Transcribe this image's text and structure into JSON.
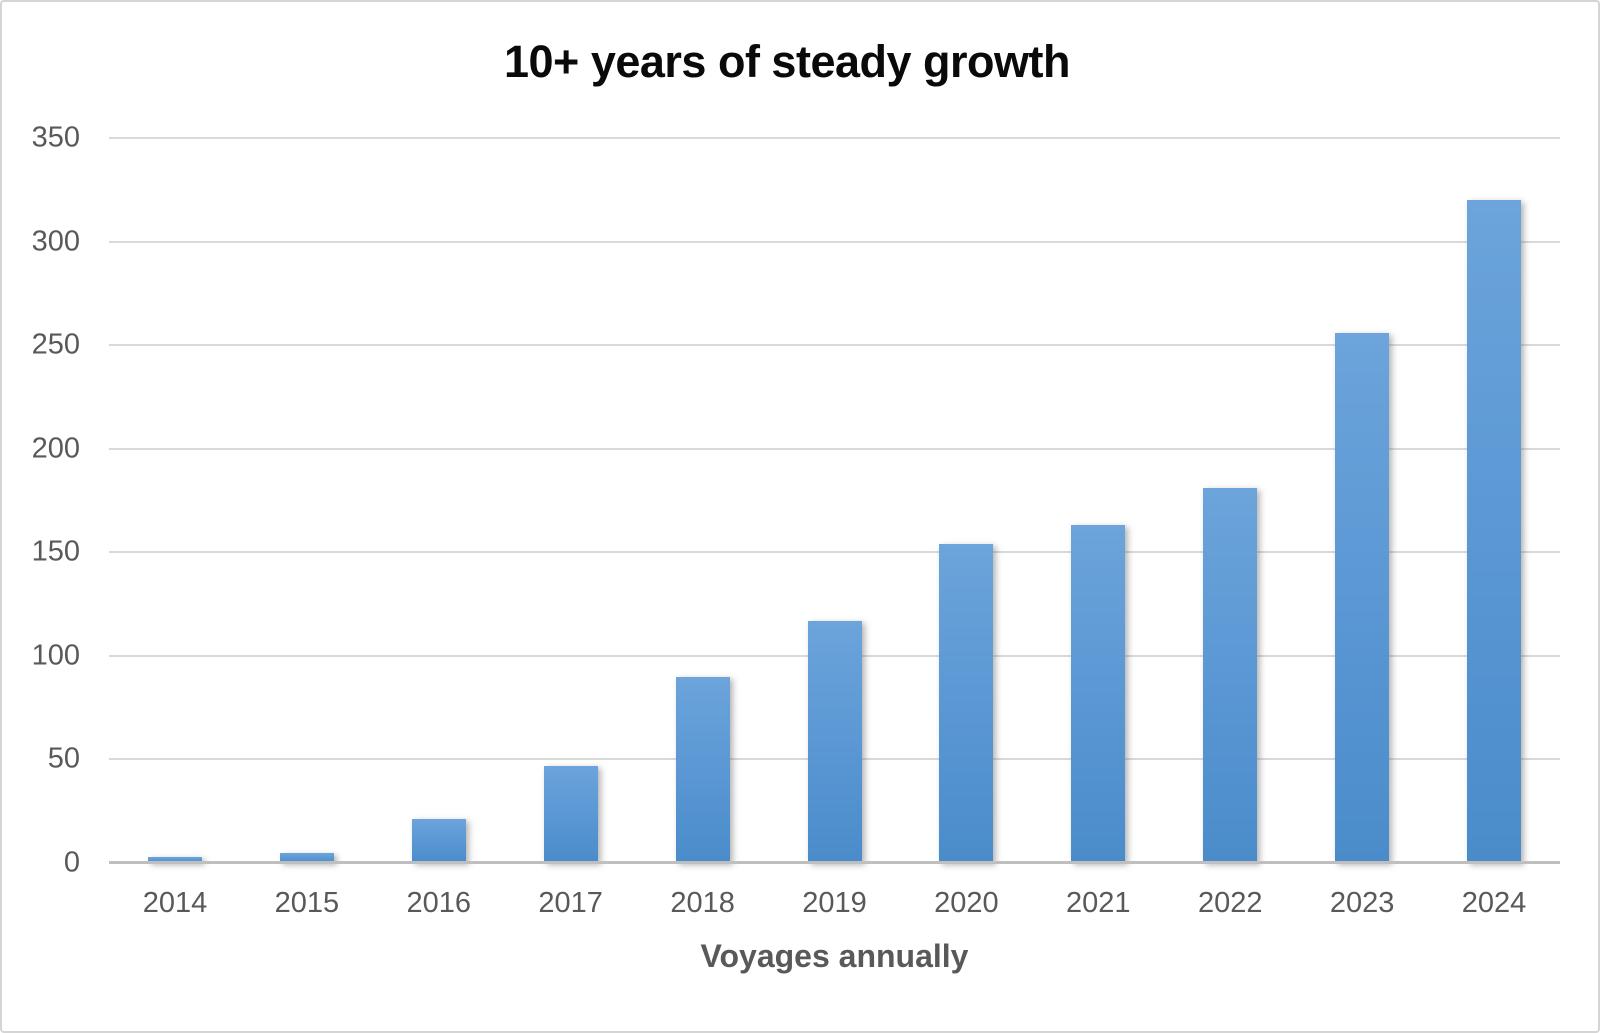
{
  "chart_data": {
    "type": "bar",
    "title": "10+ years of steady growth",
    "xlabel": "Voyages annually",
    "ylabel": "",
    "categories": [
      "2014",
      "2015",
      "2016",
      "2017",
      "2018",
      "2019",
      "2020",
      "2021",
      "2022",
      "2023",
      "2024"
    ],
    "values": [
      3,
      5,
      21,
      47,
      90,
      117,
      154,
      163,
      181,
      256,
      320
    ],
    "ylim": [
      0,
      350
    ],
    "yticks": [
      0,
      50,
      100,
      150,
      200,
      250,
      300,
      350
    ],
    "grid": true,
    "legend_position": "none",
    "bar_color_top": "#6ca4db",
    "bar_color_bottom": "#4a8cca",
    "gridline_color": "#d9d9d9",
    "axis_line_color": "#bfbfbf",
    "tick_label_color": "#595959",
    "title_color": "#0a0a0a"
  }
}
